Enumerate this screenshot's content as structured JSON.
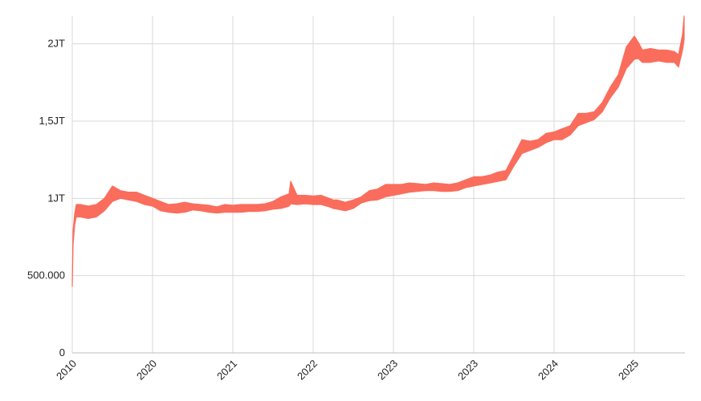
{
  "chart_data": {
    "type": "area",
    "title": "",
    "xlabel": "",
    "ylabel": "",
    "grid": true,
    "legend": "none",
    "color": "#fa6d5c",
    "ylim": [
      0,
      2180000
    ],
    "y_ticks": [
      {
        "value": 0,
        "label": "0"
      },
      {
        "value": 500000,
        "label": "500.000"
      },
      {
        "value": 1000000,
        "label": "1JT"
      },
      {
        "value": 1500000,
        "label": "1,5JT"
      },
      {
        "value": 2000000,
        "label": "2JT"
      }
    ],
    "x_ticks": [
      "2010",
      "2020",
      "2021",
      "2022",
      "2023",
      "2023",
      "2024",
      "2025"
    ],
    "x_range": [
      0,
      7.62
    ],
    "series": [
      {
        "x": [
          0.0,
          0.01,
          0.03,
          0.05,
          0.1,
          0.2,
          0.3,
          0.4,
          0.5,
          0.6,
          0.7,
          0.8,
          0.9,
          1.0,
          1.1,
          1.2,
          1.3,
          1.4,
          1.5,
          1.6,
          1.7,
          1.8,
          1.9,
          2.0,
          2.1,
          2.2,
          2.3,
          2.4,
          2.5,
          2.6,
          2.7,
          2.72,
          2.8,
          2.9,
          3.0,
          3.1,
          3.2,
          3.25,
          3.3,
          3.4,
          3.5,
          3.6,
          3.7,
          3.8,
          3.9,
          4.0,
          4.1,
          4.2,
          4.3,
          4.4,
          4.5,
          4.6,
          4.7,
          4.8,
          4.9,
          5.0,
          5.1,
          5.2,
          5.3,
          5.4,
          5.5,
          5.6,
          5.7,
          5.8,
          5.9,
          6.0,
          6.1,
          6.2,
          6.3,
          6.4,
          6.5,
          6.6,
          6.7,
          6.8,
          6.9,
          7.0,
          7.05,
          7.1,
          7.2,
          7.3,
          7.4,
          7.5,
          7.55,
          7.6,
          7.62
        ],
        "lower": [
          430000,
          700000,
          830000,
          880000,
          880000,
          870000,
          880000,
          920000,
          980000,
          1000000,
          990000,
          980000,
          960000,
          950000,
          920000,
          910000,
          905000,
          910000,
          925000,
          920000,
          910000,
          905000,
          910000,
          910000,
          910000,
          915000,
          915000,
          920000,
          930000,
          935000,
          950000,
          965000,
          960000,
          965000,
          960000,
          960000,
          945000,
          935000,
          930000,
          920000,
          935000,
          970000,
          985000,
          990000,
          1010000,
          1020000,
          1030000,
          1040000,
          1045000,
          1050000,
          1050000,
          1045000,
          1045000,
          1050000,
          1070000,
          1080000,
          1090000,
          1100000,
          1110000,
          1120000,
          1210000,
          1290000,
          1310000,
          1330000,
          1360000,
          1380000,
          1380000,
          1410000,
          1470000,
          1490000,
          1510000,
          1560000,
          1650000,
          1720000,
          1840000,
          1900000,
          1905000,
          1880000,
          1880000,
          1890000,
          1880000,
          1880000,
          1850000,
          1960000,
          2030000
        ],
        "upper": [
          460000,
          790000,
          900000,
          960000,
          960000,
          950000,
          960000,
          1000000,
          1080000,
          1050000,
          1040000,
          1040000,
          1020000,
          1000000,
          980000,
          960000,
          965000,
          975000,
          965000,
          960000,
          955000,
          945000,
          960000,
          955000,
          960000,
          960000,
          960000,
          965000,
          980000,
          1010000,
          1030000,
          1110000,
          1020000,
          1020000,
          1015000,
          1020000,
          1000000,
          990000,
          990000,
          975000,
          990000,
          1010000,
          1050000,
          1060000,
          1090000,
          1090000,
          1090000,
          1100000,
          1095000,
          1090000,
          1100000,
          1095000,
          1090000,
          1100000,
          1120000,
          1140000,
          1140000,
          1150000,
          1170000,
          1180000,
          1280000,
          1380000,
          1370000,
          1380000,
          1420000,
          1430000,
          1450000,
          1470000,
          1550000,
          1550000,
          1560000,
          1620000,
          1720000,
          1800000,
          1980000,
          2050000,
          2010000,
          1960000,
          1970000,
          1960000,
          1960000,
          1950000,
          1930000,
          2060000,
          2180000
        ]
      }
    ]
  }
}
